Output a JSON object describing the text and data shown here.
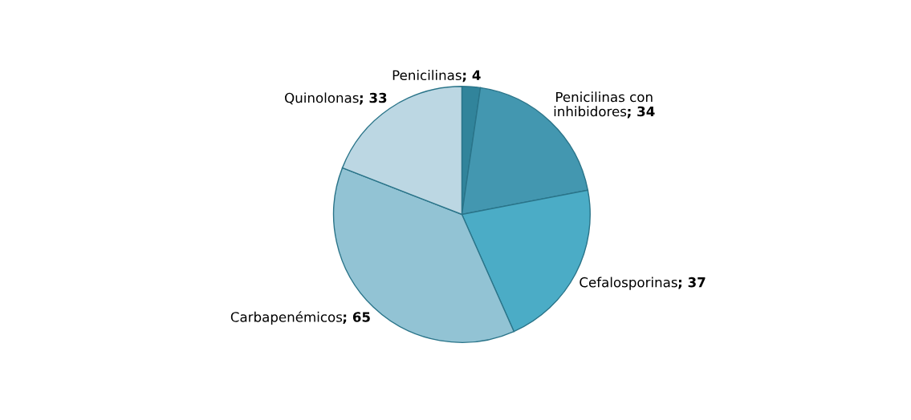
{
  "chart_data": {
    "type": "pie",
    "categories": [
      "Penicilinas",
      "Penicilinas con inhibidores",
      "Cefalosporinas",
      "Carbapenémicos",
      "Quinolonas"
    ],
    "values": [
      4,
      34,
      37,
      65,
      33
    ],
    "colors": [
      "#31849b",
      "#4397b0",
      "#4bacc6",
      "#92c3d4",
      "#bcd7e3"
    ],
    "value_labels": [
      "; 4",
      "; 34",
      "; 37",
      "; 65",
      "; 33"
    ]
  }
}
